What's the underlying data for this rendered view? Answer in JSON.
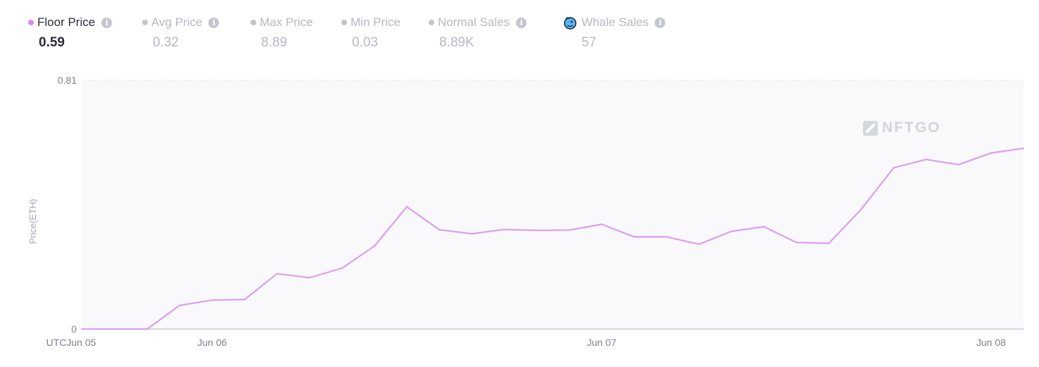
{
  "stats": [
    {
      "label": "Floor Price",
      "value": "0.59",
      "dot_color": "#d28bf2",
      "info": true,
      "active": true
    },
    {
      "label": "Avg Price",
      "value": "0.32",
      "dot_color": "#c2c4cc",
      "info": true,
      "active": false
    },
    {
      "label": "Max Price",
      "value": "8.89",
      "dot_color": "#c2c4cc",
      "info": false,
      "active": false
    },
    {
      "label": "Min Price",
      "value": "0.03",
      "dot_color": "#c2c4cc",
      "info": false,
      "active": false
    },
    {
      "label": "Normal Sales",
      "value": "8.89K",
      "dot_color": "#c2c4cc",
      "info": true,
      "active": false
    },
    {
      "label": "Whale Sales",
      "value": "57",
      "icon": "whale-icon",
      "info": true,
      "active": false
    }
  ],
  "info_glyph": "i",
  "watermark": "NFTGO",
  "colors": {
    "line": "#dd9df0",
    "plot_bg": "#f9f9fb",
    "axis": "#cfc8dc",
    "grid": "#e4e4ea"
  },
  "chart_data": {
    "type": "line",
    "ylabel": "Price(ETH)",
    "xlabel": "",
    "ylim": [
      0,
      0.81
    ],
    "y_ticks": [
      0,
      0.81
    ],
    "x_ticks": [
      {
        "label": "UTCJun 05",
        "x": 0
      },
      {
        "label": "Jun 06",
        "x": 4
      },
      {
        "label": "Jun 07",
        "x": 16
      },
      {
        "label": "Jun 08",
        "x": 28
      }
    ],
    "series": [
      {
        "values": [
          0,
          0,
          0,
          0.077,
          0.094,
          0.096,
          0.18,
          0.167,
          0.198,
          0.27,
          0.398,
          0.323,
          0.31,
          0.324,
          0.321,
          0.322,
          0.341,
          0.3,
          0.3,
          0.276,
          0.318,
          0.333,
          0.282,
          0.279,
          0.39,
          0.525,
          0.552,
          0.535,
          0.573,
          0.588
        ]
      }
    ]
  }
}
